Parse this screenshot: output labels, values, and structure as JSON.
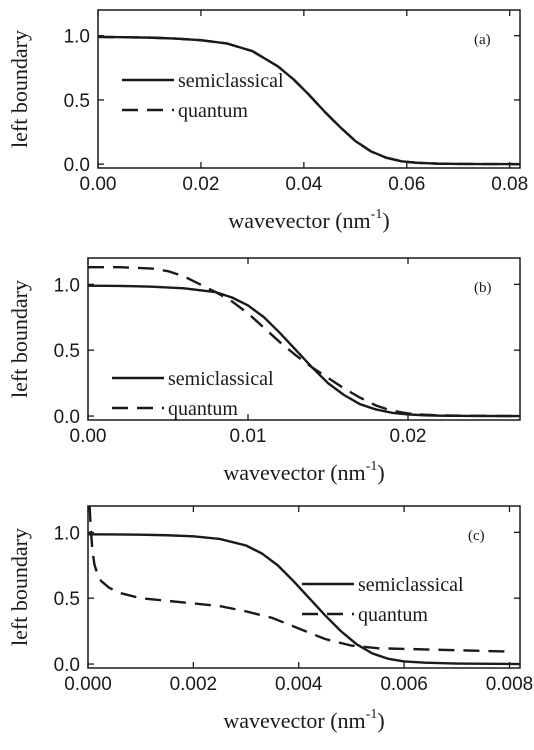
{
  "chart_data": [
    {
      "type": "line",
      "panel_tag": "(a)",
      "xlabel": "wavevector (nm",
      "xlabel_sup": "-1",
      "xlabel_end": ")",
      "ylabel": "left boundary",
      "xlim": [
        0,
        0.082
      ],
      "ylim": [
        -0.03,
        1.2
      ],
      "xticks": [
        0.0,
        0.02,
        0.04,
        0.06,
        0.08
      ],
      "xtick_labels": [
        "0.00",
        "0.02",
        "0.04",
        "0.06",
        "0.08"
      ],
      "yticks": [
        0.0,
        0.5,
        1.0
      ],
      "ytick_labels": [
        "0.0",
        "0.5",
        "1.0"
      ],
      "legend_position": "middle-left",
      "series": [
        {
          "name": "semiclassical",
          "style": "solid",
          "x": [
            0,
            0.005,
            0.01,
            0.015,
            0.02,
            0.025,
            0.03,
            0.035,
            0.038,
            0.041,
            0.044,
            0.047,
            0.05,
            0.053,
            0.056,
            0.059,
            0.062,
            0.066,
            0.07,
            0.075,
            0.082
          ],
          "y": [
            0.99,
            0.988,
            0.985,
            0.978,
            0.965,
            0.94,
            0.88,
            0.76,
            0.66,
            0.54,
            0.41,
            0.29,
            0.18,
            0.1,
            0.05,
            0.022,
            0.01,
            0.004,
            0.002,
            0.001,
            0.0
          ]
        },
        {
          "name": "quantum",
          "style": "dashed",
          "x": [
            0,
            0.005,
            0.01,
            0.015,
            0.02,
            0.025,
            0.03,
            0.035,
            0.038,
            0.041,
            0.044,
            0.047,
            0.05,
            0.053,
            0.056,
            0.059,
            0.062,
            0.066,
            0.07,
            0.075,
            0.082
          ],
          "y": [
            0.99,
            0.988,
            0.985,
            0.978,
            0.965,
            0.94,
            0.88,
            0.76,
            0.66,
            0.54,
            0.41,
            0.29,
            0.18,
            0.1,
            0.05,
            0.022,
            0.01,
            0.004,
            0.002,
            0.001,
            0.0
          ]
        }
      ]
    },
    {
      "type": "line",
      "panel_tag": "(b)",
      "xlabel": "wavevector (nm",
      "xlabel_sup": "-1",
      "xlabel_end": ")",
      "ylabel": "left boundary",
      "xlim": [
        0,
        0.027
      ],
      "ylim": [
        -0.03,
        1.2
      ],
      "xticks": [
        0.0,
        0.01,
        0.02
      ],
      "xtick_labels": [
        "0.00",
        "0.01",
        "0.02"
      ],
      "yticks": [
        0.0,
        0.5,
        1.0
      ],
      "ytick_labels": [
        "0.0",
        "0.5",
        "1.0"
      ],
      "legend_position": "bottom-left",
      "series": [
        {
          "name": "semiclassical",
          "style": "solid",
          "x": [
            0,
            0.002,
            0.004,
            0.006,
            0.008,
            0.009,
            0.01,
            0.011,
            0.012,
            0.013,
            0.014,
            0.015,
            0.016,
            0.017,
            0.018,
            0.019,
            0.02,
            0.021,
            0.022,
            0.024,
            0.027
          ],
          "y": [
            0.99,
            0.988,
            0.982,
            0.97,
            0.94,
            0.9,
            0.84,
            0.75,
            0.63,
            0.5,
            0.37,
            0.25,
            0.16,
            0.09,
            0.05,
            0.025,
            0.012,
            0.006,
            0.003,
            0.001,
            0.0
          ]
        },
        {
          "name": "quantum",
          "style": "dashed",
          "x": [
            0,
            0.002,
            0.004,
            0.005,
            0.006,
            0.007,
            0.008,
            0.009,
            0.01,
            0.011,
            0.012,
            0.013,
            0.014,
            0.015,
            0.016,
            0.017,
            0.018,
            0.019,
            0.02,
            0.021,
            0.022,
            0.024,
            0.027
          ],
          "y": [
            1.13,
            1.13,
            1.12,
            1.1,
            1.06,
            1.0,
            0.94,
            0.87,
            0.78,
            0.67,
            0.56,
            0.46,
            0.37,
            0.29,
            0.21,
            0.14,
            0.08,
            0.04,
            0.02,
            0.01,
            0.005,
            0.002,
            0.0
          ]
        }
      ]
    },
    {
      "type": "line",
      "panel_tag": "(c)",
      "xlabel": "wavevector (nm",
      "xlabel_sup": "-1",
      "xlabel_end": ")",
      "ylabel": "left boundary",
      "xlim": [
        0,
        0.0082
      ],
      "ylim": [
        -0.03,
        1.2
      ],
      "xticks": [
        0.0,
        0.002,
        0.004,
        0.006,
        0.008
      ],
      "xtick_labels": [
        "0.000",
        "0.002",
        "0.004",
        "0.006",
        "0.008"
      ],
      "yticks": [
        0.0,
        0.5,
        1.0
      ],
      "ytick_labels": [
        "0.0",
        "0.5",
        "1.0"
      ],
      "legend_position": "middle-right",
      "series": [
        {
          "name": "semiclassical",
          "style": "solid",
          "x": [
            0,
            0.0005,
            0.001,
            0.0015,
            0.002,
            0.0025,
            0.003,
            0.0033,
            0.0036,
            0.0039,
            0.0042,
            0.0045,
            0.0048,
            0.0051,
            0.0054,
            0.0057,
            0.006,
            0.0064,
            0.007,
            0.0082
          ],
          "y": [
            0.985,
            0.984,
            0.982,
            0.978,
            0.97,
            0.95,
            0.9,
            0.84,
            0.75,
            0.63,
            0.5,
            0.37,
            0.25,
            0.15,
            0.08,
            0.04,
            0.02,
            0.01,
            0.004,
            0.0
          ]
        },
        {
          "name": "quantum",
          "style": "dashed",
          "x": [
            3e-05,
            5e-05,
            8e-05,
            0.00012,
            0.00018,
            0.00025,
            0.0004,
            0.0006,
            0.001,
            0.0015,
            0.002,
            0.0025,
            0.003,
            0.0035,
            0.004,
            0.0045,
            0.005,
            0.0055,
            0.006,
            0.007,
            0.008
          ],
          "y": [
            1.2,
            1.05,
            0.88,
            0.76,
            0.68,
            0.63,
            0.58,
            0.54,
            0.5,
            0.48,
            0.46,
            0.44,
            0.4,
            0.35,
            0.27,
            0.19,
            0.14,
            0.12,
            0.115,
            0.105,
            0.095
          ]
        }
      ]
    }
  ]
}
